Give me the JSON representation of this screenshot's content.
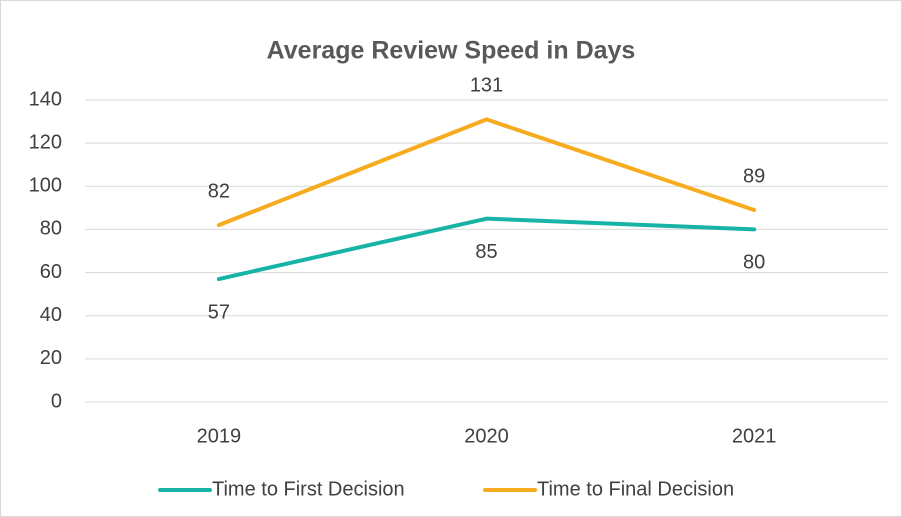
{
  "chart_data": {
    "type": "line",
    "title": "Average Review Speed in Days",
    "categories": [
      "2019",
      "2020",
      "2021"
    ],
    "series": [
      {
        "name": "Time to First Decision",
        "color": "#17b3a6",
        "values": [
          57,
          85,
          80
        ]
      },
      {
        "name": "Time to Final Decision",
        "color": "#f7ab1e",
        "values": [
          82,
          131,
          89
        ]
      }
    ],
    "ylim": [
      0,
      140
    ],
    "yticks": [
      0,
      20,
      40,
      60,
      80,
      100,
      120,
      140
    ],
    "grid": true,
    "legend": "bottom"
  }
}
